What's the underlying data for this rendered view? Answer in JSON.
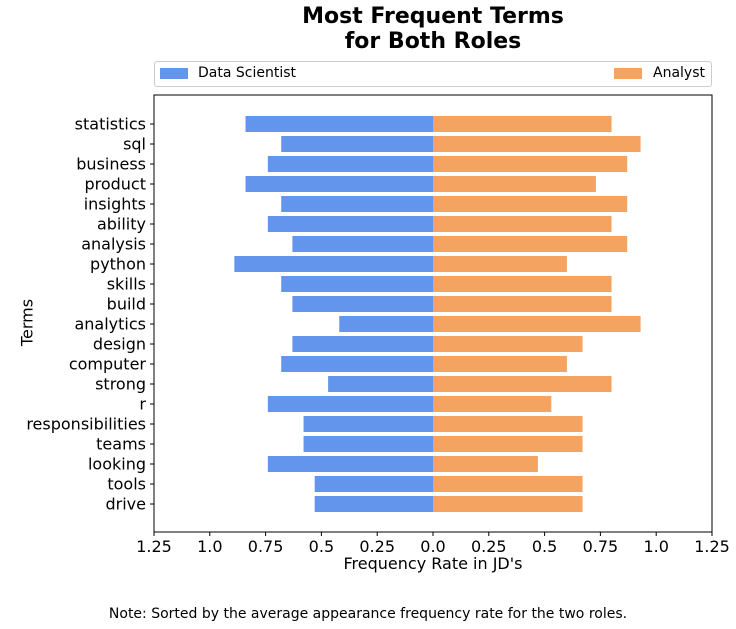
{
  "chart_data": {
    "type": "bar",
    "orientation": "horizontal-diverging",
    "title_line1": "Most Frequent Terms",
    "title_line2": "for Both Roles",
    "xlabel": "Frequency Rate in JD's",
    "ylabel": "Terms",
    "xlim": [
      -1.25,
      1.25
    ],
    "x_ticks": [
      -1.25,
      -1.0,
      -0.75,
      -0.5,
      -0.25,
      0.0,
      0.25,
      0.5,
      0.75,
      1.0,
      1.25
    ],
    "x_tick_labels": [
      "1.25",
      "1.0",
      "0.75",
      "0.5",
      "0.25",
      "0.0",
      "0.25",
      "0.5",
      "0.75",
      "1.0",
      "1.25"
    ],
    "legend_placement": "top, above plot",
    "categories": [
      "statistics",
      "sql",
      "business",
      "product",
      "insights",
      "ability",
      "analysis",
      "python",
      "skills",
      "build",
      "analytics",
      "design",
      "computer",
      "strong",
      "r",
      "responsibilities",
      "teams",
      "looking",
      "tools",
      "drive"
    ],
    "series": [
      {
        "name": "Data Scientist",
        "color": "#6495ED",
        "side": "left",
        "values": [
          0.84,
          0.68,
          0.74,
          0.84,
          0.68,
          0.74,
          0.63,
          0.89,
          0.68,
          0.63,
          0.42,
          0.63,
          0.68,
          0.47,
          0.74,
          0.58,
          0.58,
          0.74,
          0.53,
          0.53
        ]
      },
      {
        "name": "Analyst",
        "color": "#F4A460",
        "side": "right",
        "values": [
          0.8,
          0.93,
          0.87,
          0.73,
          0.87,
          0.8,
          0.87,
          0.6,
          0.8,
          0.8,
          0.93,
          0.67,
          0.6,
          0.8,
          0.53,
          0.67,
          0.67,
          0.47,
          0.67,
          0.67
        ]
      }
    ]
  },
  "footer": {
    "note": "Note: Sorted by the average appearance frequency rate for the two roles."
  }
}
